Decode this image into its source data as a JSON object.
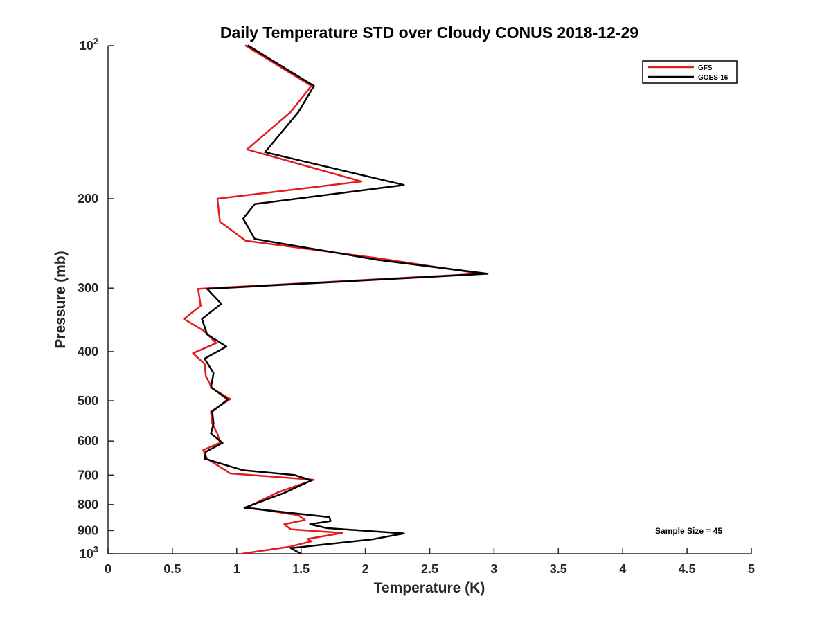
{
  "chart_data": {
    "type": "line",
    "title": "Daily Temperature STD over Cloudy CONUS 2018-12-29",
    "xlabel": "Temperature (K)",
    "ylabel": "Pressure (mb)",
    "xlim": [
      0,
      5
    ],
    "ylim": [
      100,
      1000
    ],
    "y_scale": "log",
    "y_reversed": true,
    "x_ticks": [
      0,
      0.5,
      1,
      1.5,
      2,
      2.5,
      3,
      3.5,
      4,
      4.5,
      5
    ],
    "x_tick_labels": [
      "0",
      "0.5",
      "1",
      "1.5",
      "2",
      "2.5",
      "3",
      "3.5",
      "4",
      "4.5",
      "5"
    ],
    "y_ticks": [
      100,
      200,
      300,
      400,
      500,
      600,
      700,
      800,
      900,
      1000
    ],
    "y_tick_labels": [
      {
        "base": "10",
        "exp": "2"
      },
      {
        "text": "200"
      },
      {
        "text": "300"
      },
      {
        "text": "400"
      },
      {
        "text": "500"
      },
      {
        "text": "600"
      },
      {
        "text": "700"
      },
      {
        "text": "800"
      },
      {
        "text": "900"
      },
      {
        "base": "10",
        "exp": "3"
      }
    ],
    "legend": {
      "position": "top-right",
      "entries": [
        "GFS",
        "GOES-16"
      ]
    },
    "annotation": "Sample Size = 45",
    "grid": false,
    "series": [
      {
        "name": "GFS",
        "color": "#e41a1c",
        "points": [
          [
            1.07,
            100
          ],
          [
            1.58,
            120
          ],
          [
            1.42,
            135
          ],
          [
            1.08,
            160
          ],
          [
            1.97,
            185
          ],
          [
            0.85,
            200
          ],
          [
            0.87,
            222
          ],
          [
            1.07,
            242
          ],
          [
            2.1,
            262
          ],
          [
            2.9,
            281
          ],
          [
            0.7,
            301
          ],
          [
            0.72,
            325
          ],
          [
            0.59,
            345
          ],
          [
            0.75,
            365
          ],
          [
            0.84,
            385
          ],
          [
            0.66,
            403
          ],
          [
            0.75,
            423
          ],
          [
            0.76,
            447
          ],
          [
            0.81,
            473
          ],
          [
            0.95,
            496
          ],
          [
            0.8,
            525
          ],
          [
            0.81,
            555
          ],
          [
            0.85,
            580
          ],
          [
            0.87,
            605
          ],
          [
            0.74,
            625
          ],
          [
            0.77,
            650
          ],
          [
            0.95,
            695
          ],
          [
            1.6,
            715
          ],
          [
            1.32,
            757
          ],
          [
            1.08,
            810
          ],
          [
            1.48,
            840
          ],
          [
            1.53,
            858
          ],
          [
            1.37,
            875
          ],
          [
            1.42,
            895
          ],
          [
            1.82,
            910
          ],
          [
            1.55,
            935
          ],
          [
            1.58,
            945
          ],
          [
            1.42,
            968
          ],
          [
            1.04,
            1000
          ]
        ]
      },
      {
        "name": "GOES-16",
        "color": "#000000",
        "points": [
          [
            1.09,
            100
          ],
          [
            1.6,
            120
          ],
          [
            1.48,
            135
          ],
          [
            1.33,
            150
          ],
          [
            1.22,
            162
          ],
          [
            2.3,
            188
          ],
          [
            1.14,
            205
          ],
          [
            1.05,
            219
          ],
          [
            1.14,
            240
          ],
          [
            2.1,
            264
          ],
          [
            2.95,
            281
          ],
          [
            0.77,
            301
          ],
          [
            0.88,
            322
          ],
          [
            0.73,
            345
          ],
          [
            0.77,
            370
          ],
          [
            0.92,
            391
          ],
          [
            0.75,
            413
          ],
          [
            0.82,
            441
          ],
          [
            0.8,
            470
          ],
          [
            0.93,
            497
          ],
          [
            0.81,
            525
          ],
          [
            0.82,
            555
          ],
          [
            0.8,
            580
          ],
          [
            0.89,
            605
          ],
          [
            0.76,
            630
          ],
          [
            0.75,
            650
          ],
          [
            1.05,
            685
          ],
          [
            1.45,
            700
          ],
          [
            1.58,
            717
          ],
          [
            1.38,
            757
          ],
          [
            1.06,
            812
          ],
          [
            1.72,
            847
          ],
          [
            1.73,
            862
          ],
          [
            1.57,
            875
          ],
          [
            1.7,
            890
          ],
          [
            2.3,
            912
          ],
          [
            2.05,
            937
          ],
          [
            1.42,
            975
          ],
          [
            1.5,
            1000
          ]
        ]
      }
    ]
  }
}
